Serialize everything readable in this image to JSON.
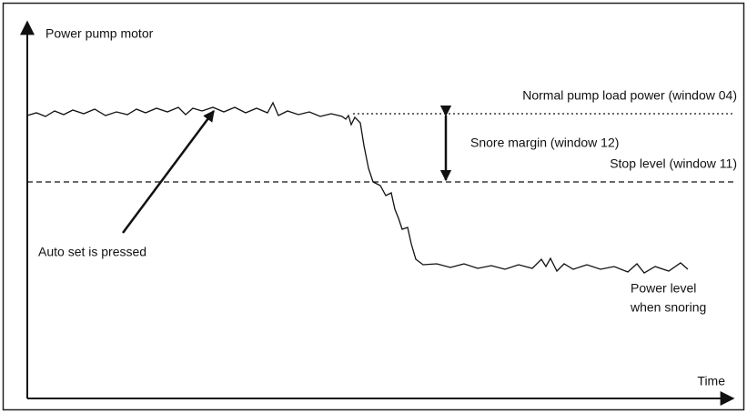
{
  "y_axis_label": "Power pump motor",
  "x_axis_label": "Time",
  "normal_level_label": "Normal pump load power (window 04)",
  "margin_label": "Snore margin (window 12)",
  "stop_level_label": "Stop level (window 11)",
  "auto_set_label": "Auto set is pressed",
  "snoring_label": [
    "Power level",
    "when snoring"
  ]
}
